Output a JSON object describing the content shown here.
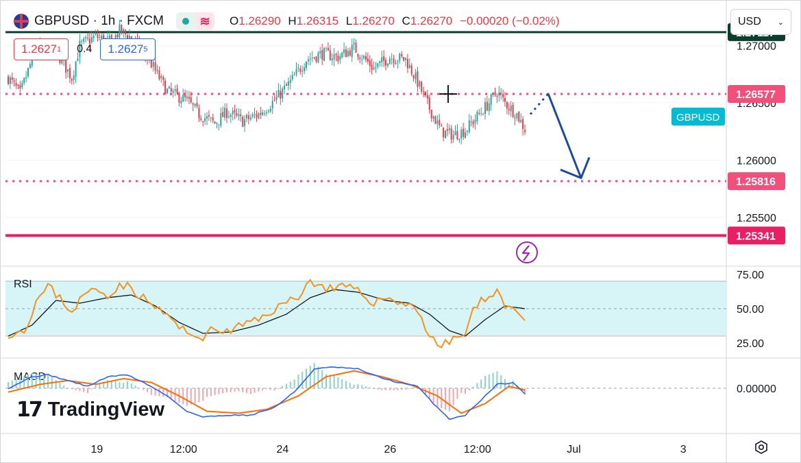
{
  "header": {
    "symbol_line": "GBPUSD · 1h · FXCM",
    "open_label": "O",
    "open": "1.26290",
    "high_label": "H",
    "high": "1.26315",
    "low_label": "L",
    "low": "1.26270",
    "close_label": "C",
    "close": "1.26270",
    "change": "−0.00020 (−0.02%)",
    "sell_price_main": "1.2627",
    "sell_price_sup": "1",
    "spread": "0.4",
    "buy_price_main": "1.2627",
    "buy_price_sup": "5"
  },
  "currency_select": {
    "value": "USD"
  },
  "watermark": "TradingView",
  "colors": {
    "up": "#26a69a",
    "down": "#f23645",
    "resistance": "#0c3e2d",
    "support": "#e91e63",
    "dotted": "#f0507a",
    "arrow": "#1b4ba1",
    "rsi_line": "#f7931a",
    "rsi_ma": "#131722",
    "rsi_band": "#d7f4f7",
    "macd_line": "#2962ff",
    "signal_line": "#ff6d00",
    "label_cyan": "#00bcd4"
  },
  "chart_data": [
    {
      "type": "candlestick",
      "symbol": "GBPUSD",
      "interval": "1h",
      "x_ticks": [
        "19",
        "12:00",
        "24",
        "26",
        "12:00",
        "Jul",
        "3"
      ],
      "y_ticks": [
        "1.27000",
        "1.26500",
        "1.26000",
        "1.25500"
      ],
      "ylim": [
        1.2508,
        1.2735
      ],
      "anchors": [
        [
          0,
          1.2672
        ],
        [
          6,
          1.2658
        ],
        [
          14,
          1.2698
        ],
        [
          24,
          1.2695
        ],
        [
          32,
          1.2672
        ],
        [
          36,
          1.27
        ],
        [
          44,
          1.2708
        ],
        [
          52,
          1.2703
        ],
        [
          56,
          1.2713
        ],
        [
          62,
          1.2707
        ],
        [
          70,
          1.269
        ],
        [
          80,
          1.266
        ],
        [
          90,
          1.2652
        ],
        [
          96,
          1.264
        ],
        [
          104,
          1.2632
        ],
        [
          110,
          1.2642
        ],
        [
          118,
          1.2634
        ],
        [
          126,
          1.264
        ],
        [
          134,
          1.2652
        ],
        [
          142,
          1.2668
        ],
        [
          150,
          1.2688
        ],
        [
          158,
          1.2693
        ],
        [
          166,
          1.269
        ],
        [
          174,
          1.2698
        ],
        [
          184,
          1.268
        ],
        [
          192,
          1.269
        ],
        [
          200,
          1.2688
        ],
        [
          206,
          1.2668
        ],
        [
          212,
          1.2645
        ],
        [
          218,
          1.2625
        ],
        [
          224,
          1.2622
        ],
        [
          230,
          1.2626
        ],
        [
          236,
          1.2638
        ],
        [
          242,
          1.265
        ],
        [
          246,
          1.266
        ],
        [
          250,
          1.265
        ],
        [
          256,
          1.264
        ],
        [
          260,
          1.2627
        ]
      ],
      "candle_count": 261,
      "horizontal_levels": [
        {
          "value": "1.27117",
          "style": "solid-dark"
        },
        {
          "value": "1.26577",
          "style": "dotted-pink"
        },
        {
          "value": "1.25816",
          "style": "dotted-pink"
        },
        {
          "value": "1.25341",
          "style": "solid-pink"
        }
      ],
      "symbol_label": "GBPUSD",
      "projection": {
        "from": 1.264,
        "to": 1.2658,
        "target": 1.2582,
        "direction": "down"
      }
    },
    {
      "type": "line",
      "title": "RSI",
      "y_ticks": [
        "75.00",
        "50.00",
        "25.00"
      ],
      "ylim": [
        15,
        80
      ],
      "band": [
        30,
        70
      ],
      "midline": 50,
      "series": [
        {
          "values": [
            [
              0,
              32
            ],
            [
              8,
              34
            ],
            [
              14,
              55
            ],
            [
              20,
              66
            ],
            [
              26,
              58
            ],
            [
              32,
              48
            ],
            [
              38,
              60
            ],
            [
              44,
              64
            ],
            [
              50,
              60
            ],
            [
              56,
              68
            ],
            [
              62,
              65
            ],
            [
              70,
              55
            ],
            [
              80,
              45
            ],
            [
              90,
              31
            ],
            [
              98,
              30
            ],
            [
              104,
              35
            ],
            [
              110,
              33
            ],
            [
              118,
              38
            ],
            [
              126,
              42
            ],
            [
              134,
              50
            ],
            [
              140,
              54
            ],
            [
              146,
              60
            ],
            [
              152,
              70
            ],
            [
              158,
              66
            ],
            [
              164,
              64
            ],
            [
              170,
              66
            ],
            [
              176,
              62
            ],
            [
              184,
              55
            ],
            [
              192,
              58
            ],
            [
              198,
              54
            ],
            [
              206,
              50
            ],
            [
              212,
              30
            ],
            [
              218,
              22
            ],
            [
              224,
              28
            ],
            [
              230,
              32
            ],
            [
              234,
              48
            ],
            [
              240,
              58
            ],
            [
              246,
              64
            ],
            [
              250,
              52
            ],
            [
              256,
              50
            ],
            [
              260,
              42
            ]
          ]
        },
        {
          "values": [
            [
              0,
              30
            ],
            [
              12,
              38
            ],
            [
              24,
              56
            ],
            [
              36,
              54
            ],
            [
              50,
              58
            ],
            [
              62,
              60
            ],
            [
              74,
              52
            ],
            [
              86,
              40
            ],
            [
              98,
              32
            ],
            [
              112,
              33
            ],
            [
              126,
              38
            ],
            [
              140,
              46
            ],
            [
              152,
              58
            ],
            [
              164,
              64
            ],
            [
              176,
              62
            ],
            [
              190,
              56
            ],
            [
              202,
              54
            ],
            [
              212,
              46
            ],
            [
              222,
              34
            ],
            [
              230,
              30
            ],
            [
              240,
              42
            ],
            [
              250,
              52
            ],
            [
              260,
              50
            ]
          ]
        }
      ]
    },
    {
      "type": "line",
      "title": "MACD",
      "y_ticks": [
        "0.00000"
      ],
      "series": [
        {
          "values": [
            [
              0,
              0.0
            ],
            [
              12,
              0.6
            ],
            [
              20,
              0.7
            ],
            [
              30,
              0.4
            ],
            [
              40,
              0.1
            ],
            [
              50,
              0.6
            ],
            [
              60,
              0.7
            ],
            [
              70,
              0.2
            ],
            [
              80,
              -0.4
            ],
            [
              90,
              -1.2
            ],
            [
              98,
              -1.5
            ],
            [
              110,
              -1.4
            ],
            [
              122,
              -1.4
            ],
            [
              134,
              -1.0
            ],
            [
              144,
              -0.2
            ],
            [
              154,
              1.0
            ],
            [
              164,
              1.1
            ],
            [
              176,
              1.0
            ],
            [
              186,
              0.6
            ],
            [
              196,
              0.3
            ],
            [
              206,
              0.1
            ],
            [
              214,
              -0.8
            ],
            [
              222,
              -1.6
            ],
            [
              230,
              -1.4
            ],
            [
              238,
              -0.6
            ],
            [
              246,
              0.2
            ],
            [
              254,
              0.3
            ],
            [
              260,
              -0.3
            ]
          ]
        },
        {
          "values": [
            [
              0,
              -0.2
            ],
            [
              16,
              0.2
            ],
            [
              30,
              0.4
            ],
            [
              44,
              0.2
            ],
            [
              58,
              0.5
            ],
            [
              72,
              0.3
            ],
            [
              86,
              -0.4
            ],
            [
              100,
              -1.2
            ],
            [
              116,
              -1.3
            ],
            [
              130,
              -1.1
            ],
            [
              146,
              -0.4
            ],
            [
              160,
              0.6
            ],
            [
              174,
              0.9
            ],
            [
              188,
              0.6
            ],
            [
              202,
              0.2
            ],
            [
              216,
              -0.4
            ],
            [
              228,
              -1.3
            ],
            [
              240,
              -0.8
            ],
            [
              252,
              0.1
            ],
            [
              260,
              -0.1
            ]
          ]
        }
      ]
    }
  ]
}
